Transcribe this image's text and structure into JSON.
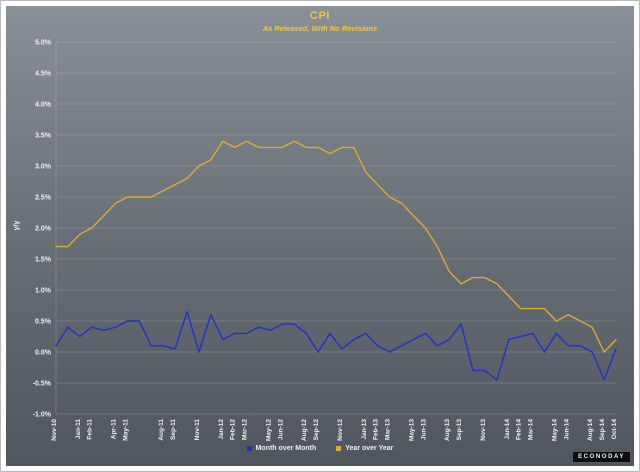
{
  "header": {
    "title": "CPI",
    "subtitle": "As Released, With No Revisions"
  },
  "branding": {
    "logo_text": "ECONODAY"
  },
  "colors": {
    "title": "#f2c53d",
    "mom_line": "#2230c8",
    "yoy_line": "#dfa92e",
    "axis_text": "#eef1f6",
    "gridline": "#bdc2ca"
  },
  "chart_data": {
    "type": "line",
    "title": "CPI",
    "subtitle": "As Released, With No Revisions",
    "xlabel": "",
    "ylabel": "y/y",
    "ylim": [
      -1.0,
      5.0
    ],
    "ytick_step": 0.5,
    "y_ticks": [
      5.0,
      4.5,
      4.0,
      3.5,
      3.0,
      2.5,
      2.0,
      1.5,
      1.0,
      0.5,
      0.0,
      -0.5,
      -1.0
    ],
    "grid": true,
    "legend_position": "bottom",
    "categories": [
      "Nov-10",
      "Dec-10",
      "Jan-11",
      "Feb-11",
      "Mar-11",
      "Apr-11",
      "May-11",
      "Jun-11",
      "Jul-11",
      "Aug-11",
      "Sep-11",
      "Oct-11",
      "Nov-11",
      "Dec-11",
      "Jan-12",
      "Feb-12",
      "Mar-12",
      "Apr-12",
      "May-12",
      "Jun-12",
      "Jul-12",
      "Aug-12",
      "Sep-12",
      "Oct-12",
      "Nov-12",
      "Dec-12",
      "Jan-13",
      "Feb-13",
      "Mar-13",
      "Apr-13",
      "May-13",
      "Jun-13",
      "Jul-13",
      "Aug-13",
      "Sep-13",
      "Oct-13",
      "Nov-13",
      "Dec-13",
      "Jan-14",
      "Feb-14",
      "Mar-14",
      "Apr-14",
      "May-14",
      "Jun-14",
      "Jul-14",
      "Aug-14",
      "Sep-14",
      "Oct-14"
    ],
    "x_tick_indices": [
      0,
      2,
      3,
      5,
      6,
      9,
      10,
      12,
      14,
      15,
      16,
      18,
      19,
      21,
      22,
      24,
      26,
      27,
      28,
      30,
      31,
      33,
      34,
      36,
      38,
      39,
      40,
      42,
      43,
      45,
      46,
      47
    ],
    "series": [
      {
        "name": "Month over Month",
        "color": "#2230c8",
        "values": [
          0.1,
          0.4,
          0.25,
          0.4,
          0.35,
          0.4,
          0.5,
          0.5,
          0.1,
          0.1,
          0.05,
          0.65,
          0.0,
          0.6,
          0.2,
          0.3,
          0.3,
          0.4,
          0.35,
          0.45,
          0.45,
          0.3,
          0.0,
          0.3,
          0.05,
          0.2,
          0.3,
          0.1,
          0.0,
          0.1,
          0.2,
          0.3,
          0.1,
          0.2,
          0.45,
          -0.3,
          -0.3,
          -0.45,
          0.2,
          0.25,
          0.3,
          0.0,
          0.3,
          0.1,
          0.1,
          0.0,
          -0.45,
          0.05
        ]
      },
      {
        "name": "Year over Year",
        "color": "#dfa92e",
        "values": [
          1.7,
          1.7,
          1.9,
          2.0,
          2.2,
          2.4,
          2.5,
          2.5,
          2.5,
          2.6,
          2.7,
          2.8,
          3.0,
          3.1,
          3.4,
          3.3,
          3.4,
          3.3,
          3.3,
          3.3,
          3.4,
          3.3,
          3.3,
          3.2,
          3.3,
          3.3,
          2.9,
          2.7,
          2.5,
          2.4,
          2.2,
          2.0,
          1.7,
          1.3,
          1.1,
          1.2,
          1.2,
          1.1,
          0.9,
          0.7,
          0.7,
          0.7,
          0.5,
          0.6,
          0.5,
          0.4,
          0.0,
          0.2
        ]
      }
    ]
  }
}
